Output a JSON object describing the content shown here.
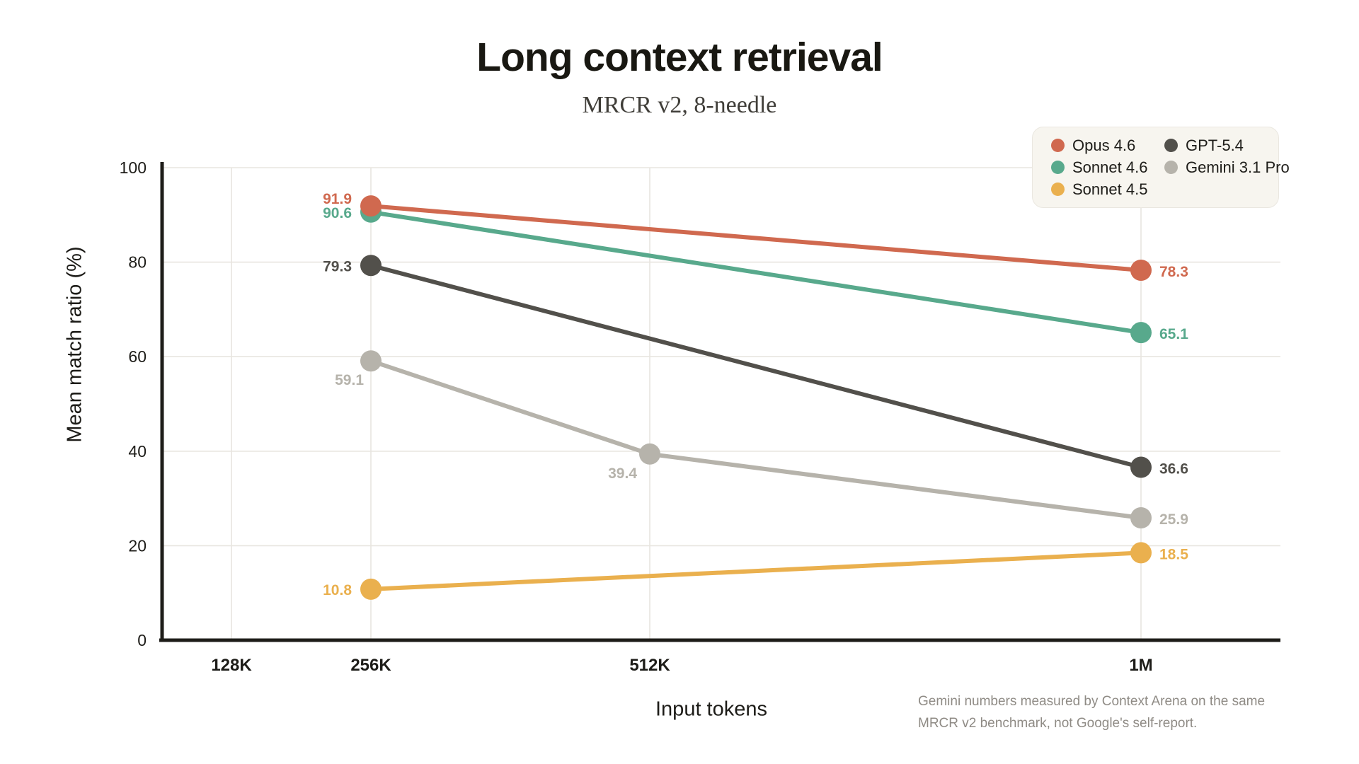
{
  "header": {
    "title": "Long context retrieval",
    "subtitle": "MRCR v2, 8-needle"
  },
  "footnote": "Gemini numbers measured by Context Arena on the same MRCR v2 benchmark, not Google's self-report.",
  "colors": {
    "axis": "#1d1c18",
    "gridline": "#e8e5df",
    "legend_background": "#f7f5ef"
  },
  "chart_data": {
    "type": "line",
    "title": "Long context retrieval",
    "subtitle": "MRCR v2, 8-needle",
    "xlabel": "Input tokens",
    "ylabel": "Mean match ratio (%)",
    "x_categories": [
      "128K",
      "256K",
      "512K",
      "1M"
    ],
    "y_ticks": [
      0,
      20,
      40,
      60,
      80,
      100
    ],
    "ylim": [
      0,
      100
    ],
    "grid": true,
    "legend_position": "top-right",
    "series": [
      {
        "name": "Opus 4.6",
        "color": "#d0694f",
        "points": [
          {
            "x": "256K",
            "y": 91.9,
            "label": "91.9",
            "label_side": "left-up"
          },
          {
            "x": "1M",
            "y": 78.3,
            "label": "78.3",
            "label_side": "right"
          }
        ]
      },
      {
        "name": "Sonnet 4.6",
        "color": "#58a98c",
        "points": [
          {
            "x": "256K",
            "y": 90.6,
            "label": "90.6",
            "label_side": "left"
          },
          {
            "x": "1M",
            "y": 65.1,
            "label": "65.1",
            "label_side": "right"
          }
        ]
      },
      {
        "name": "Sonnet 4.5",
        "color": "#eab04e",
        "points": [
          {
            "x": "256K",
            "y": 10.8,
            "label": "10.8",
            "label_side": "left"
          },
          {
            "x": "1M",
            "y": 18.5,
            "label": "18.5",
            "label_side": "right"
          }
        ]
      },
      {
        "name": "GPT-5.4",
        "color": "#52504b",
        "points": [
          {
            "x": "256K",
            "y": 79.3,
            "label": "79.3",
            "label_side": "left"
          },
          {
            "x": "1M",
            "y": 36.6,
            "label": "36.6",
            "label_side": "right"
          }
        ]
      },
      {
        "name": "Gemini 3.1 Pro",
        "color": "#b6b3ab",
        "points": [
          {
            "x": "256K",
            "y": 59.1,
            "label": "59.1",
            "label_side": "below-left"
          },
          {
            "x": "512K",
            "y": 39.4,
            "label": "39.4",
            "label_side": "below-left-far"
          },
          {
            "x": "1M",
            "y": 25.9,
            "label": "25.9",
            "label_side": "right"
          }
        ]
      }
    ]
  }
}
